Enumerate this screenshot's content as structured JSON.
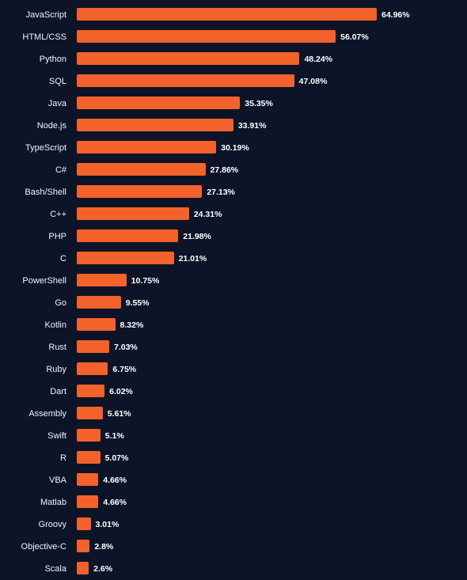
{
  "chart_data": {
    "type": "bar",
    "orientation": "horizontal",
    "categories": [
      "JavaScript",
      "HTML/CSS",
      "Python",
      "SQL",
      "Java",
      "Node.js",
      "TypeScript",
      "C#",
      "Bash/Shell",
      "C++",
      "PHP",
      "C",
      "PowerShell",
      "Go",
      "Kotlin",
      "Rust",
      "Ruby",
      "Dart",
      "Assembly",
      "Swift",
      "R",
      "VBA",
      "Matlab",
      "Groovy",
      "Objective-C",
      "Scala"
    ],
    "values": [
      64.96,
      56.07,
      48.24,
      47.08,
      35.35,
      33.91,
      30.19,
      27.86,
      27.13,
      24.31,
      21.98,
      21.01,
      10.75,
      9.55,
      8.32,
      7.03,
      6.75,
      6.02,
      5.61,
      5.1,
      5.07,
      4.66,
      4.66,
      3.01,
      2.8,
      2.6
    ],
    "value_labels": [
      "64.96%",
      "56.07%",
      "48.24%",
      "47.08%",
      "35.35%",
      "33.91%",
      "30.19%",
      "27.86%",
      "27.13%",
      "24.31%",
      "21.98%",
      "21.01%",
      "10.75%",
      "9.55%",
      "8.32%",
      "7.03%",
      "6.75%",
      "6.02%",
      "5.61%",
      "5.1%",
      "5.07%",
      "4.66%",
      "4.66%",
      "3.01%",
      "2.8%",
      "2.6%"
    ],
    "xlim": [
      0,
      64.96
    ],
    "grid": false,
    "legend": "none"
  },
  "colors": {
    "background": "#0e1428",
    "bar": "#f4622b",
    "label": "#f2f3f5",
    "value_label": "#ffffff"
  }
}
